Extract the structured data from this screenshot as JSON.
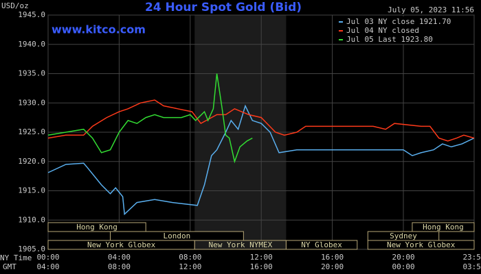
{
  "chart_data": {
    "type": "line",
    "title": "24 Hour Spot Gold (Bid)",
    "y_label": "USD/oz",
    "timestamp": "July 05, 2023 11:56",
    "watermark": "www.kitco.com",
    "x_label_top": "NY Time",
    "x_label_bottom": "GMT",
    "xlim": [
      0,
      23.983
    ],
    "xticks": [
      {
        "value": 0,
        "label": "00:00"
      },
      {
        "value": 4,
        "label": "04:00"
      },
      {
        "value": 8,
        "label": "08:00"
      },
      {
        "value": 12,
        "label": "12:00"
      },
      {
        "value": 16,
        "label": "16:00"
      },
      {
        "value": 20,
        "label": "20:00"
      },
      {
        "value": 23.983,
        "label": "23:59"
      }
    ],
    "x2ticks": [
      {
        "value": 0,
        "label": "04:00"
      },
      {
        "value": 4,
        "label": "08:00"
      },
      {
        "value": 8,
        "label": "12:00"
      },
      {
        "value": 12,
        "label": "16:00"
      },
      {
        "value": 16,
        "label": "20:00"
      },
      {
        "value": 20,
        "label": "00:00"
      },
      {
        "value": 23.983,
        "label": "03:59"
      }
    ],
    "ylim": [
      1905,
      1945
    ],
    "yticks": [
      {
        "value": 1905,
        "label": "1905.0"
      },
      {
        "value": 1910,
        "label": "1910.0"
      },
      {
        "value": 1915,
        "label": "1915.0"
      },
      {
        "value": 1920,
        "label": "1920.0"
      },
      {
        "value": 1925,
        "label": "1925.0"
      },
      {
        "value": 1930,
        "label": "1930.0"
      },
      {
        "value": 1935,
        "label": "1935.0"
      },
      {
        "value": 1940,
        "label": "1940.0"
      },
      {
        "value": 1945,
        "label": "1945.0"
      }
    ],
    "grid": true,
    "legend": "top-right",
    "sessions": [
      {
        "label": "Hong Kong",
        "start": 0,
        "end": 5.5,
        "row": 0
      },
      {
        "label": "London",
        "start": 3.5,
        "end": 11,
        "row": 1
      },
      {
        "label": "New York Globex",
        "start": 0,
        "end": 8.25,
        "row": 2
      },
      {
        "label": "New York NYMEX",
        "start": 8.25,
        "end": 13.4,
        "row": 2,
        "highlight": true
      },
      {
        "label": "NY Globex",
        "start": 13.4,
        "end": 17.4,
        "row": 2
      },
      {
        "label": "Hong Kong",
        "start": 20.5,
        "end": 23.983,
        "row": 0
      },
      {
        "label": "Sydney",
        "start": 18,
        "end": 22,
        "row": 1
      },
      {
        "label": "New York Globex",
        "start": 18,
        "end": 23.983,
        "row": 2
      }
    ],
    "series": [
      {
        "name": "Jul 03 NY close 1921.70",
        "color": "#5ab0f0",
        "x": [
          0,
          1,
          2,
          2.2,
          3,
          3.5,
          3.8,
          4.2,
          4.3,
          5,
          6,
          7,
          8.4,
          8.8,
          9.2,
          9.5,
          10,
          10.3,
          10.7,
          11.1,
          11.5,
          12,
          12.5,
          13,
          14,
          16,
          18,
          20,
          20.5,
          21,
          21.7,
          22.2,
          22.7,
          23.3,
          23.983
        ],
        "values": [
          1918.1,
          1919.5,
          1919.7,
          1919,
          1916,
          1914.5,
          1915.5,
          1914,
          1911,
          1913,
          1913.5,
          1913,
          1912.5,
          1916,
          1921,
          1922,
          1925,
          1927,
          1925.5,
          1929.5,
          1927,
          1926.5,
          1925,
          1921.5,
          1922,
          1922,
          1922,
          1922,
          1921,
          1921.5,
          1922,
          1923,
          1922.5,
          1923,
          1924
        ]
      },
      {
        "name": "Jul 04 NY closed",
        "color": "#ff3a1a",
        "x": [
          0,
          1,
          2,
          2.5,
          3.3,
          4,
          4.5,
          5.2,
          6,
          6.5,
          7.3,
          8.1,
          8.6,
          9.5,
          10,
          10.5,
          11.3,
          12,
          12.8,
          13.3,
          14,
          14.5,
          18.3,
          19,
          19.5,
          21,
          21.5,
          22,
          22.5,
          23,
          23.4,
          23.983
        ],
        "values": [
          1924,
          1924.5,
          1924.5,
          1926,
          1927.5,
          1928.5,
          1929,
          1930,
          1930.5,
          1929.5,
          1929,
          1928.5,
          1926.5,
          1928,
          1928,
          1929,
          1928,
          1927.5,
          1925,
          1924.5,
          1925,
          1926,
          1926,
          1925.5,
          1926.5,
          1926,
          1926,
          1924,
          1923.5,
          1924,
          1924.5,
          1924
        ]
      },
      {
        "name": "Jul 05 Last 1923.80",
        "color": "#33dd33",
        "x": [
          0,
          1,
          2,
          2.5,
          3,
          3.5,
          4,
          4.5,
          5,
          5.5,
          6,
          6.5,
          7.5,
          8,
          8.3,
          8.8,
          9,
          9.3,
          9.5,
          9.8,
          10,
          10.2,
          10.5,
          10.8,
          11.2,
          11.5
        ],
        "values": [
          1924.5,
          1925,
          1925.5,
          1924,
          1921.5,
          1922,
          1925,
          1927,
          1926.5,
          1927.5,
          1928,
          1927.5,
          1927.5,
          1928,
          1927,
          1928.5,
          1927,
          1929,
          1935,
          1929,
          1924.5,
          1924,
          1920,
          1922.5,
          1923.5,
          1924
        ]
      }
    ]
  }
}
